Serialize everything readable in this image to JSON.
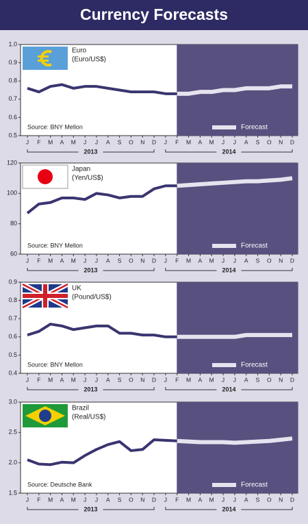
{
  "title": "Currency Forecasts",
  "chart_data": [
    {
      "type": "line",
      "title": "Euro",
      "subtitle": "(Euro/US$)",
      "source": "Source: BNY Mellon",
      "categories": [
        "J",
        "F",
        "M",
        "A",
        "M",
        "J",
        "J",
        "A",
        "S",
        "O",
        "N",
        "D",
        "J",
        "F",
        "M",
        "A",
        "M",
        "J",
        "J",
        "A",
        "S",
        "O",
        "N",
        "D"
      ],
      "year_labels": [
        "2013",
        "2014"
      ],
      "ylim": [
        0.5,
        1.0
      ],
      "yticks": [
        0.5,
        0.6,
        0.7,
        0.8,
        0.9,
        {
          "value": 1.0,
          "label": "1.0"
        }
      ],
      "shade_color": "#58507f",
      "series": [
        {
          "color": "#3a3570",
          "values": [
            0.76,
            0.74,
            0.77,
            0.78,
            0.76,
            0.77,
            0.77,
            0.76,
            0.75,
            0.74,
            0.74,
            0.74,
            0.73,
            0.73,
            null,
            null,
            null,
            null,
            null,
            null,
            null,
            null,
            null,
            null
          ]
        },
        {
          "name": "Forecast",
          "color": "#e6e3ef",
          "values": [
            null,
            null,
            null,
            null,
            null,
            null,
            null,
            null,
            null,
            null,
            null,
            null,
            null,
            0.73,
            0.73,
            0.74,
            0.74,
            0.75,
            0.75,
            0.76,
            0.76,
            0.76,
            0.77,
            0.77
          ]
        }
      ]
    },
    {
      "type": "line",
      "title": "Japan",
      "subtitle": "(Yen/US$)",
      "source": "Source: BNY Mellon",
      "categories": [
        "J",
        "F",
        "M",
        "A",
        "M",
        "J",
        "J",
        "A",
        "S",
        "O",
        "N",
        "D",
        "J",
        "F",
        "M",
        "A",
        "M",
        "J",
        "J",
        "A",
        "S",
        "O",
        "N",
        "D"
      ],
      "year_labels": [
        "2013",
        "2014"
      ],
      "ylim": [
        60,
        120
      ],
      "yticks": [
        60,
        80,
        100,
        120
      ],
      "shade_color": "#58507f",
      "series": [
        {
          "color": "#3a3570",
          "values": [
            87,
            93,
            94,
            97,
            97,
            96,
            100,
            99,
            97,
            98,
            98,
            103,
            105,
            105,
            null,
            null,
            null,
            null,
            null,
            null,
            null,
            null,
            null,
            null
          ]
        },
        {
          "name": "Forecast",
          "color": "#e6e3ef",
          "values": [
            null,
            null,
            null,
            null,
            null,
            null,
            null,
            null,
            null,
            null,
            null,
            null,
            null,
            105,
            105.5,
            106,
            106.5,
            107,
            107.5,
            108,
            108,
            108.5,
            109,
            110
          ]
        }
      ]
    },
    {
      "type": "line",
      "title": "UK",
      "subtitle": "(Pound/US$)",
      "source": "Source: BNY Mellon",
      "categories": [
        "J",
        "F",
        "M",
        "A",
        "M",
        "J",
        "J",
        "A",
        "S",
        "O",
        "N",
        "D",
        "J",
        "F",
        "M",
        "A",
        "M",
        "J",
        "J",
        "A",
        "S",
        "O",
        "N",
        "D"
      ],
      "year_labels": [
        "2013",
        "2014"
      ],
      "ylim": [
        0.4,
        0.9
      ],
      "yticks": [
        0.4,
        0.5,
        0.6,
        0.7,
        0.8,
        0.9
      ],
      "shade_color": "#58507f",
      "series": [
        {
          "color": "#3a3570",
          "values": [
            0.61,
            0.63,
            0.67,
            0.66,
            0.64,
            0.65,
            0.66,
            0.66,
            0.62,
            0.62,
            0.61,
            0.61,
            0.6,
            0.6,
            null,
            null,
            null,
            null,
            null,
            null,
            null,
            null,
            null,
            null
          ]
        },
        {
          "name": "Forecast",
          "color": "#e6e3ef",
          "values": [
            null,
            null,
            null,
            null,
            null,
            null,
            null,
            null,
            null,
            null,
            null,
            null,
            null,
            0.6,
            0.6,
            0.6,
            0.6,
            0.6,
            0.6,
            0.61,
            0.61,
            0.61,
            0.61,
            0.61
          ]
        }
      ]
    },
    {
      "type": "line",
      "title": "Brazil",
      "subtitle": "(Real/US$)",
      "source": "Source: Deutsche Bank",
      "categories": [
        "J",
        "F",
        "M",
        "A",
        "M",
        "J",
        "J",
        "A",
        "S",
        "O",
        "N",
        "D",
        "J",
        "F",
        "M",
        "A",
        "M",
        "J",
        "J",
        "A",
        "S",
        "O",
        "N",
        "D"
      ],
      "year_labels": [
        "2013",
        "2014"
      ],
      "ylim": [
        1.5,
        3.0
      ],
      "yticks": [
        1.5,
        {
          "value": 2.0,
          "label": "2.0"
        },
        2.5,
        {
          "value": 3.0,
          "label": "3.0"
        }
      ],
      "shade_color": "#58507f",
      "series": [
        {
          "color": "#3a3570",
          "values": [
            2.05,
            1.98,
            1.97,
            2.01,
            2.0,
            2.12,
            2.22,
            2.3,
            2.35,
            2.2,
            2.22,
            2.38,
            2.37,
            2.36,
            null,
            null,
            null,
            null,
            null,
            null,
            null,
            null,
            null,
            null
          ]
        },
        {
          "name": "Forecast",
          "color": "#e6e3ef",
          "values": [
            null,
            null,
            null,
            null,
            null,
            null,
            null,
            null,
            null,
            null,
            null,
            null,
            null,
            2.36,
            2.35,
            2.34,
            2.34,
            2.34,
            2.33,
            2.34,
            2.35,
            2.36,
            2.38,
            2.4
          ]
        }
      ]
    }
  ]
}
